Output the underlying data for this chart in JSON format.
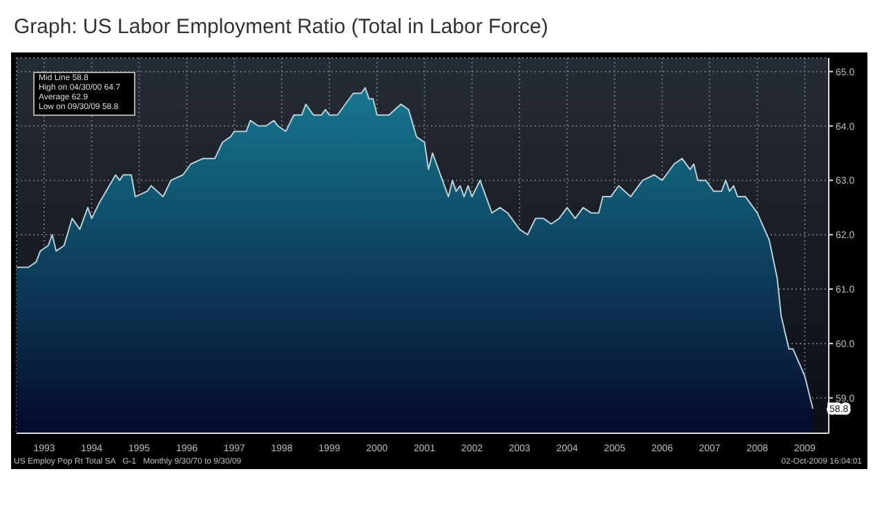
{
  "chart_data": {
    "type": "area",
    "title": "Graph: US Labor Employment Ratio (Total in Labor Force)",
    "x": [
      "1992-12",
      "1993-03",
      "1993-05",
      "1993-06",
      "1993-08",
      "1993-09",
      "1993-10",
      "1993-12",
      "1994-02",
      "1994-04",
      "1994-06",
      "1994-07",
      "1994-09",
      "1995-01",
      "1995-02",
      "1995-03",
      "1995-05",
      "1995-06",
      "1995-09",
      "1995-10",
      "1996-01",
      "1996-03",
      "1996-06",
      "1996-08",
      "1996-11",
      "1997-02",
      "1997-04",
      "1997-06",
      "1997-07",
      "1997-10",
      "1997-11",
      "1998-01",
      "1998-03",
      "1998-05",
      "1998-06",
      "1998-08",
      "1998-10",
      "1998-12",
      "1999-01",
      "1999-03",
      "1999-05",
      "1999-06",
      "1999-07",
      "1999-09",
      "1999-11",
      "2000-01",
      "2000-03",
      "2000-04",
      "2000-05",
      "2000-06",
      "2000-07",
      "2000-10",
      "2001-01",
      "2001-03",
      "2001-05",
      "2001-07",
      "2001-08",
      "2001-09",
      "2001-11",
      "2002-01",
      "2002-02",
      "2002-03",
      "2002-04",
      "2002-05",
      "2002-06",
      "2002-07",
      "2002-09",
      "2002-12",
      "2003-02",
      "2003-04",
      "2003-07",
      "2003-09",
      "2003-11",
      "2004-01",
      "2004-03",
      "2004-05",
      "2004-07",
      "2004-09",
      "2004-11",
      "2005-01",
      "2005-03",
      "2005-04",
      "2005-06",
      "2005-08",
      "2005-11",
      "2006-02",
      "2006-05",
      "2006-07",
      "2006-08",
      "2006-10",
      "2006-12",
      "2007-02",
      "2007-03",
      "2007-04",
      "2007-06",
      "2007-08",
      "2007-10",
      "2007-11",
      "2007-12",
      "2008-01",
      "2008-02",
      "2008-04",
      "2008-07",
      "2008-10",
      "2008-12",
      "2009-01",
      "2009-03",
      "2009-04",
      "2009-07",
      "2009-08",
      "2009-09"
    ],
    "series": [
      {
        "color": "#17788f",
        "values": [
          61.4,
          61.4,
          61.5,
          61.7,
          61.8,
          62.0,
          61.7,
          61.8,
          62.3,
          62.1,
          62.5,
          62.3,
          62.6,
          63.1,
          63.0,
          63.1,
          63.1,
          62.7,
          62.8,
          62.9,
          62.7,
          63.0,
          63.1,
          63.3,
          63.4,
          63.4,
          63.7,
          63.8,
          63.9,
          63.9,
          64.1,
          64.0,
          64.0,
          64.1,
          64.0,
          63.9,
          64.2,
          64.2,
          64.4,
          64.2,
          64.2,
          64.3,
          64.2,
          64.2,
          64.4,
          64.6,
          64.6,
          64.7,
          64.5,
          64.5,
          64.2,
          64.2,
          64.4,
          64.3,
          63.8,
          63.7,
          63.2,
          63.5,
          63.1,
          62.7,
          63.0,
          62.8,
          62.9,
          62.7,
          62.9,
          62.7,
          63.0,
          62.4,
          62.5,
          62.4,
          62.1,
          62.0,
          62.3,
          62.3,
          62.2,
          62.3,
          62.5,
          62.3,
          62.5,
          62.4,
          62.4,
          62.7,
          62.7,
          62.9,
          62.7,
          63.0,
          63.1,
          63.0,
          63.1,
          63.3,
          63.4,
          63.2,
          63.3,
          63.0,
          63.0,
          62.8,
          62.8,
          63.0,
          62.8,
          62.9,
          62.7,
          62.7,
          62.4,
          61.9,
          61.2,
          60.5,
          59.9,
          59.9,
          59.4,
          59.1,
          58.8
        ]
      }
    ],
    "xlim": [
      "1992-12",
      "2010-01"
    ],
    "xticks": [
      {
        "value": "1993-07",
        "label": "1993"
      },
      {
        "value": "1994-07",
        "label": "1994"
      },
      {
        "value": "1995-07",
        "label": "1995"
      },
      {
        "value": "1996-07",
        "label": "1996"
      },
      {
        "value": "1997-07",
        "label": "1997"
      },
      {
        "value": "1998-07",
        "label": "1998"
      },
      {
        "value": "1999-07",
        "label": "1999"
      },
      {
        "value": "2000-07",
        "label": "2000"
      },
      {
        "value": "2001-07",
        "label": "2001"
      },
      {
        "value": "2002-07",
        "label": "2002"
      },
      {
        "value": "2003-07",
        "label": "2003"
      },
      {
        "value": "2004-07",
        "label": "2004"
      },
      {
        "value": "2005-07",
        "label": "2005"
      },
      {
        "value": "2006-07",
        "label": "2006"
      },
      {
        "value": "2007-07",
        "label": "2007"
      },
      {
        "value": "2008-07",
        "label": "2008"
      },
      {
        "value": "2009-07",
        "label": "2009"
      }
    ],
    "ylim": [
      58.35,
      65.25
    ],
    "yticks": [
      {
        "value": 59,
        "label": "59.0"
      },
      {
        "value": 60,
        "label": "60.0"
      },
      {
        "value": 61,
        "label": "61.0"
      },
      {
        "value": 62,
        "label": "62.0"
      },
      {
        "value": 63,
        "label": "63.0"
      },
      {
        "value": 64,
        "label": "64.0"
      },
      {
        "value": 65,
        "label": "65.0"
      }
    ],
    "grid": true,
    "annotations": [
      "Mid Line 58.8",
      "High on 04/30/00 64.7",
      "Average 62.9",
      "Low on 09/30/09 58.8",
      "US Employ Pop Rt Total SA   G-1   Monthly 9/30/70 to 9/30/09",
      "02-Oct-2009 16:04:01",
      {
        "text": "58.8",
        "x": "2009-09",
        "y": 58.8
      }
    ]
  }
}
